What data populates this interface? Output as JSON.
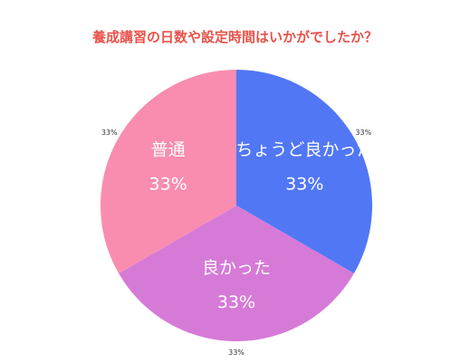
{
  "chart_data": {
    "type": "pie",
    "title": "養成講習の日数や設定時間はいかがでしたか？",
    "title_color": "#e8524a",
    "slices": [
      {
        "label": "ちょうど良かった",
        "value": 33,
        "percent_label": "33%",
        "color": "#5177f5"
      },
      {
        "label": "良かった",
        "value": 33,
        "percent_label": "33%",
        "color": "#d67ad8"
      },
      {
        "label": "普通",
        "value": 33,
        "percent_label": "33%",
        "color": "#f98daf"
      }
    ]
  }
}
